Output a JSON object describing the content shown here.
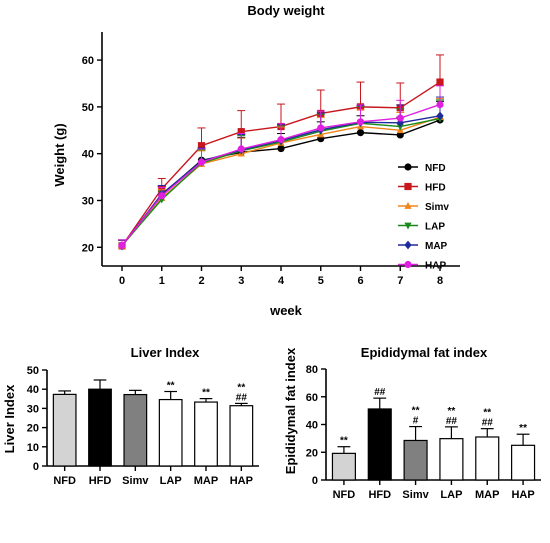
{
  "chart_data": [
    {
      "type": "line",
      "title": "Body weight",
      "xlabel": "week",
      "ylabel": "Weight (g)",
      "x": [
        0,
        1,
        2,
        3,
        4,
        5,
        6,
        7,
        8
      ],
      "xticks": [
        "0",
        "1",
        "2",
        "3",
        "4",
        "5",
        "6",
        "7",
        "8"
      ],
      "yticks": [
        "20",
        "30",
        "40",
        "50",
        "60"
      ],
      "ylim": [
        16,
        66
      ],
      "legend_position": "right",
      "series": [
        {
          "name": "NFD",
          "color": "#000000",
          "marker": "circle",
          "values": [
            20.3,
            31.2,
            38.6,
            40.3,
            41.1,
            43.2,
            44.5,
            44.0,
            47.2
          ],
          "errors": [
            1.2,
            1.8,
            2.6,
            3.2,
            3.2,
            3.6,
            3.6,
            3.8,
            4.0
          ]
        },
        {
          "name": "HFD",
          "color": "#c8161d",
          "marker": "square",
          "values": [
            20.3,
            32.5,
            41.7,
            44.7,
            45.8,
            48.6,
            50.0,
            49.8,
            55.3
          ],
          "errors": [
            1.2,
            2.2,
            3.8,
            4.5,
            4.8,
            5.0,
            5.3,
            5.3,
            5.8
          ]
        },
        {
          "name": "Simv",
          "color": "#f08519",
          "marker": "triangle-up",
          "values": [
            20.3,
            30.5,
            37.8,
            40.0,
            42.3,
            44.1,
            45.8,
            45.0,
            47.8
          ],
          "errors": [
            1.2,
            1.8,
            2.8,
            3.3,
            3.4,
            3.6,
            3.6,
            3.8,
            4.0
          ]
        },
        {
          "name": "LAP",
          "color": "#1a8a1a",
          "marker": "triangle-down",
          "values": [
            20.4,
            30.2,
            38.0,
            40.6,
            42.5,
            44.8,
            46.5,
            45.8,
            47.5
          ],
          "errors": [
            1.2,
            1.8,
            2.8,
            3.3,
            3.4,
            3.6,
            3.6,
            3.8,
            4.0
          ]
        },
        {
          "name": "MAP",
          "color": "#1f2a9c",
          "marker": "diamond",
          "values": [
            20.3,
            31.4,
            38.4,
            40.8,
            42.8,
            45.1,
            46.7,
            46.6,
            48.1
          ],
          "errors": [
            1.2,
            1.8,
            2.8,
            3.3,
            3.4,
            3.6,
            3.6,
            3.8,
            4.0
          ]
        },
        {
          "name": "HAP",
          "color": "#e020e0",
          "marker": "circle",
          "values": [
            20.4,
            31.0,
            38.2,
            41.0,
            43.0,
            45.5,
            46.8,
            47.6,
            50.5
          ],
          "errors": [
            1.2,
            1.8,
            2.8,
            3.3,
            3.4,
            3.6,
            3.6,
            3.8,
            4.0
          ]
        }
      ]
    },
    {
      "type": "bar",
      "title": "Liver Index",
      "xlabel": "",
      "ylabel": "Liver Index",
      "categories": [
        "NFD",
        "HFD",
        "Simv",
        "LAP",
        "MAP",
        "HAP"
      ],
      "values": [
        37.3,
        40.0,
        37.2,
        34.6,
        33.3,
        31.4
      ],
      "errors": [
        1.8,
        4.8,
        2.2,
        4.2,
        1.8,
        1.2
      ],
      "colors": [
        "#d3d3d3",
        "#000000",
        "#808080",
        "#ffffff",
        "#ffffff",
        "#ffffff"
      ],
      "annotations": [
        [],
        [],
        [],
        [
          "**"
        ],
        [
          "**"
        ],
        [
          "**",
          "##"
        ]
      ],
      "yticks": [
        "0",
        "10",
        "20",
        "30",
        "40",
        "50"
      ],
      "ylim": [
        0,
        50
      ]
    },
    {
      "type": "bar",
      "title": "Epididymal fat index",
      "xlabel": "",
      "ylabel": "Epididymal fat index",
      "categories": [
        "NFD",
        "HFD",
        "Simv",
        "LAP",
        "MAP",
        "HAP"
      ],
      "values": [
        19.2,
        51.2,
        28.5,
        29.8,
        31.0,
        25.0
      ],
      "errors": [
        4.8,
        7.8,
        10.0,
        8.5,
        6.0,
        8.0
      ],
      "colors": [
        "#d3d3d3",
        "#000000",
        "#808080",
        "#ffffff",
        "#ffffff",
        "#ffffff"
      ],
      "annotations": [
        [
          "**"
        ],
        [
          "##"
        ],
        [
          "**",
          "#"
        ],
        [
          "**",
          "##"
        ],
        [
          "**",
          "##"
        ],
        [
          "**"
        ]
      ],
      "yticks": [
        "0",
        "20",
        "40",
        "60",
        "80"
      ],
      "ylim": [
        0,
        80
      ]
    }
  ]
}
